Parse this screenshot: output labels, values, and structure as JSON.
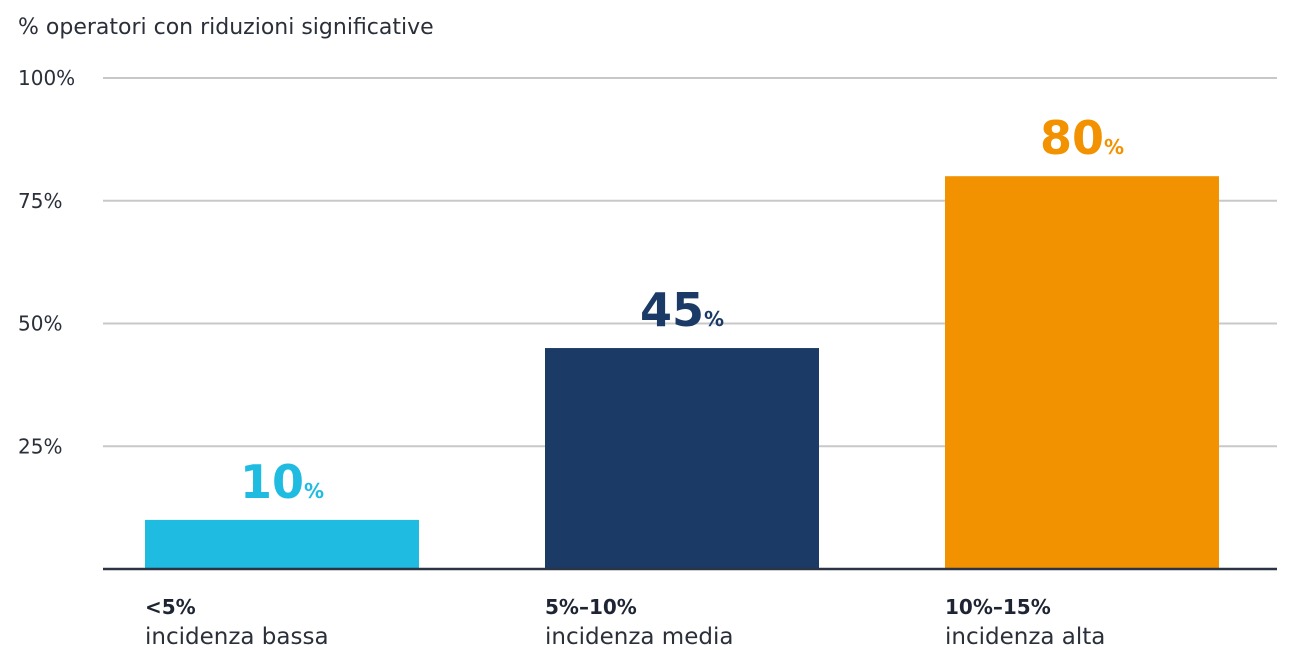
{
  "chart_data": {
    "type": "bar",
    "ylabel": "% operatori con riduzioni significative",
    "ylim": [
      0,
      100
    ],
    "yticks": [
      {
        "value": 25,
        "label": "25%"
      },
      {
        "value": 50,
        "label": "50%"
      },
      {
        "value": 75,
        "label": "75%"
      },
      {
        "value": 100,
        "label": "100%"
      }
    ],
    "grid": true,
    "categories": [
      {
        "range": "<5%",
        "description": "incidenza bassa"
      },
      {
        "range": "5%–10%",
        "description": "incidenza media"
      },
      {
        "range": "10%–15%",
        "description": "incidenza alta"
      }
    ],
    "values": [
      10,
      45,
      80
    ],
    "value_labels": [
      {
        "number": "10",
        "unit": "%"
      },
      {
        "number": "45",
        "unit": "%"
      },
      {
        "number": "80",
        "unit": "%"
      }
    ],
    "colors": [
      "#1fbbe0",
      "#1b3a66",
      "#f29200"
    ]
  }
}
